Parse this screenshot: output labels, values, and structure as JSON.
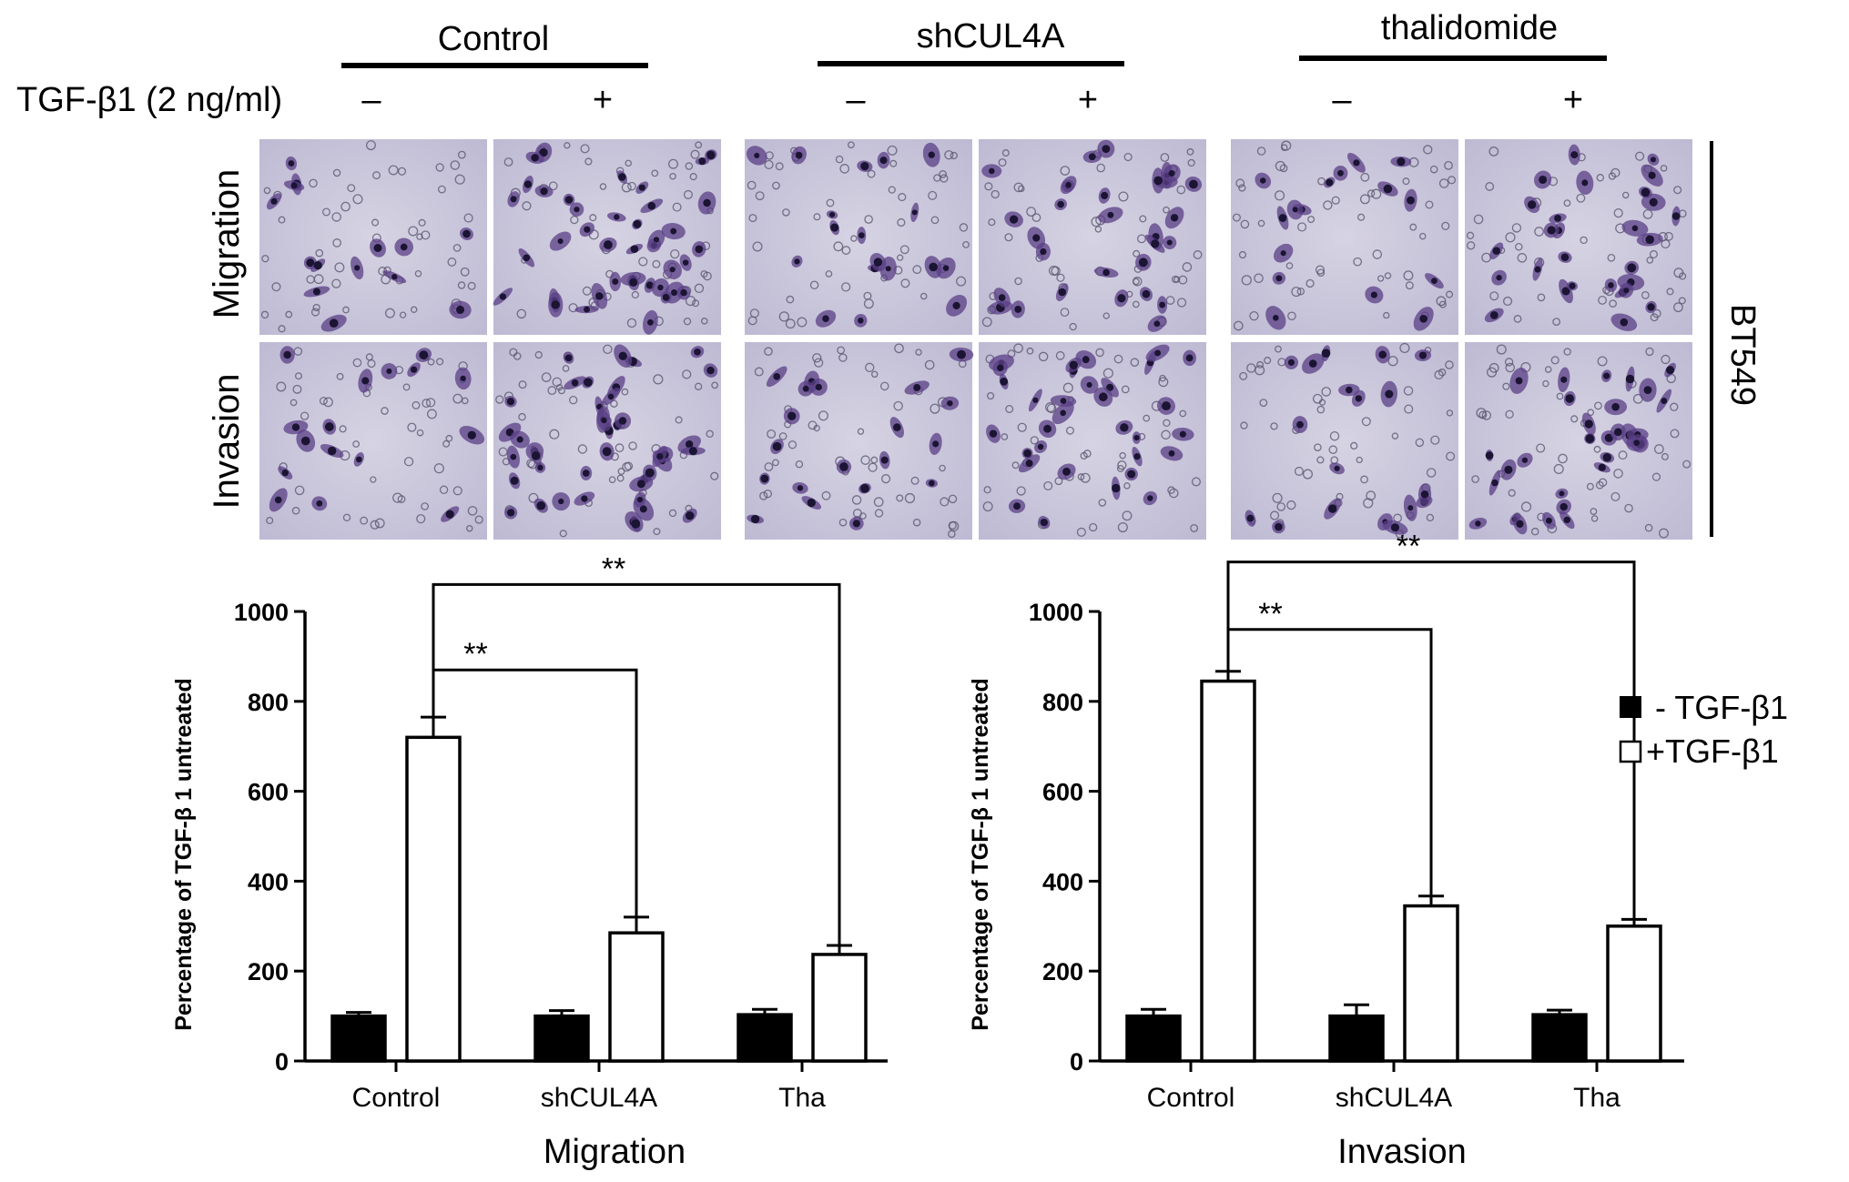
{
  "header": {
    "groups": [
      {
        "label": "Control",
        "minus": "–",
        "plus": "+"
      },
      {
        "label": "shCUL4A",
        "minus": "–",
        "plus": "+"
      },
      {
        "label": "thalidomide",
        "minus": "–",
        "plus": "+"
      }
    ],
    "treatment_label": "TGF-β1 (2 ng/ml)",
    "row_labels": [
      "Migration",
      "Invasion"
    ],
    "cell_line": "BT549"
  },
  "colors": {
    "background_field": "#cdc9dc",
    "cell_stain": "#5a3f86",
    "cell_dark": "#1b1433",
    "bar_filled": "#000000",
    "bar_open": "#ffffff"
  },
  "legend": {
    "items": [
      {
        "label": "- TGF-β1",
        "style": "filled"
      },
      {
        "label": "+TGF-β1",
        "style": "open"
      }
    ]
  },
  "chart_data": [
    {
      "type": "bar",
      "xlabel": "Migration",
      "ylabel": "Percentage of TGF-β 1 untreated",
      "ylim": [
        0,
        1000
      ],
      "yticks": [
        0,
        200,
        400,
        600,
        800,
        1000
      ],
      "categories": [
        "Control",
        "shCUL4A",
        "Tha"
      ],
      "series": [
        {
          "name": "- TGF-β1",
          "values": [
            100,
            100,
            103
          ],
          "errors": [
            8,
            12,
            12
          ]
        },
        {
          "name": "+TGF-β1",
          "values": [
            720,
            285,
            237
          ],
          "errors": [
            45,
            35,
            20
          ]
        }
      ],
      "significance": [
        {
          "from_category": 0,
          "to_category": 1,
          "label": "**",
          "bracket_y": 870
        },
        {
          "from_category": 0,
          "to_category": 2,
          "label": "**",
          "bracket_y": 1060
        }
      ]
    },
    {
      "type": "bar",
      "xlabel": "Invasion",
      "ylabel": "Percentage of TGF-β 1 untreated",
      "ylim": [
        0,
        1000
      ],
      "yticks": [
        0,
        200,
        400,
        600,
        800,
        1000
      ],
      "categories": [
        "Control",
        "shCUL4A",
        "Tha"
      ],
      "series": [
        {
          "name": "- TGF-β1",
          "values": [
            100,
            100,
            103
          ],
          "errors": [
            15,
            25,
            10
          ]
        },
        {
          "name": "+TGF-β1",
          "values": [
            845,
            345,
            300
          ],
          "errors": [
            22,
            22,
            15
          ]
        }
      ],
      "significance": [
        {
          "from_category": 0,
          "to_category": 1,
          "label": "**",
          "bracket_y": 960
        },
        {
          "from_category": 0,
          "to_category": 2,
          "label": "**",
          "bracket_y": 1110
        }
      ]
    }
  ]
}
